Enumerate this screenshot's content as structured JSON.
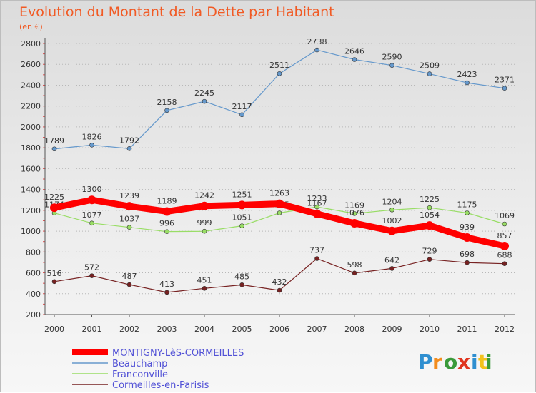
{
  "chart_data": {
    "type": "line",
    "title": "Evolution du Montant de la Dette par Habitant",
    "subtitle": "(en €)",
    "xlabel": "",
    "ylabel": "",
    "x": [
      "2000",
      "2001",
      "2002",
      "2003",
      "2004",
      "2005",
      "2006",
      "2007",
      "2008",
      "2009",
      "2010",
      "2011",
      "2012"
    ],
    "ylim": [
      200,
      2800
    ],
    "yticks": [
      200,
      400,
      600,
      800,
      1000,
      1200,
      1400,
      1600,
      1800,
      2000,
      2200,
      2400,
      2600,
      2800
    ],
    "grid": "horizontal dotted",
    "legend_position": "bottom",
    "series": [
      {
        "name": "MONTIGNY-LèS-CORMEILLES",
        "color": "#ff0000",
        "values": [
          1225,
          1300,
          1239,
          1189,
          1242,
          1251,
          1263,
          1167,
          1076,
          1002,
          1054,
          939,
          857
        ]
      },
      {
        "name": "Beauchamp",
        "color": "#6699cc",
        "values": [
          1789,
          1826,
          1792,
          2158,
          2245,
          2117,
          2511,
          2738,
          2646,
          2590,
          2509,
          2423,
          2371
        ]
      },
      {
        "name": "Franconville",
        "color": "#99dd66",
        "values": [
          1174,
          1077,
          1037,
          996,
          999,
          1051,
          1175,
          1233,
          1169,
          1204,
          1225,
          1175,
          1069
        ]
      },
      {
        "name": "Cormeilles-en-Parisis",
        "color": "#772222",
        "values": [
          516,
          572,
          487,
          413,
          451,
          485,
          432,
          737,
          598,
          642,
          729,
          698,
          688
        ]
      }
    ]
  },
  "brand": {
    "logo_text": "Proxiti"
  }
}
